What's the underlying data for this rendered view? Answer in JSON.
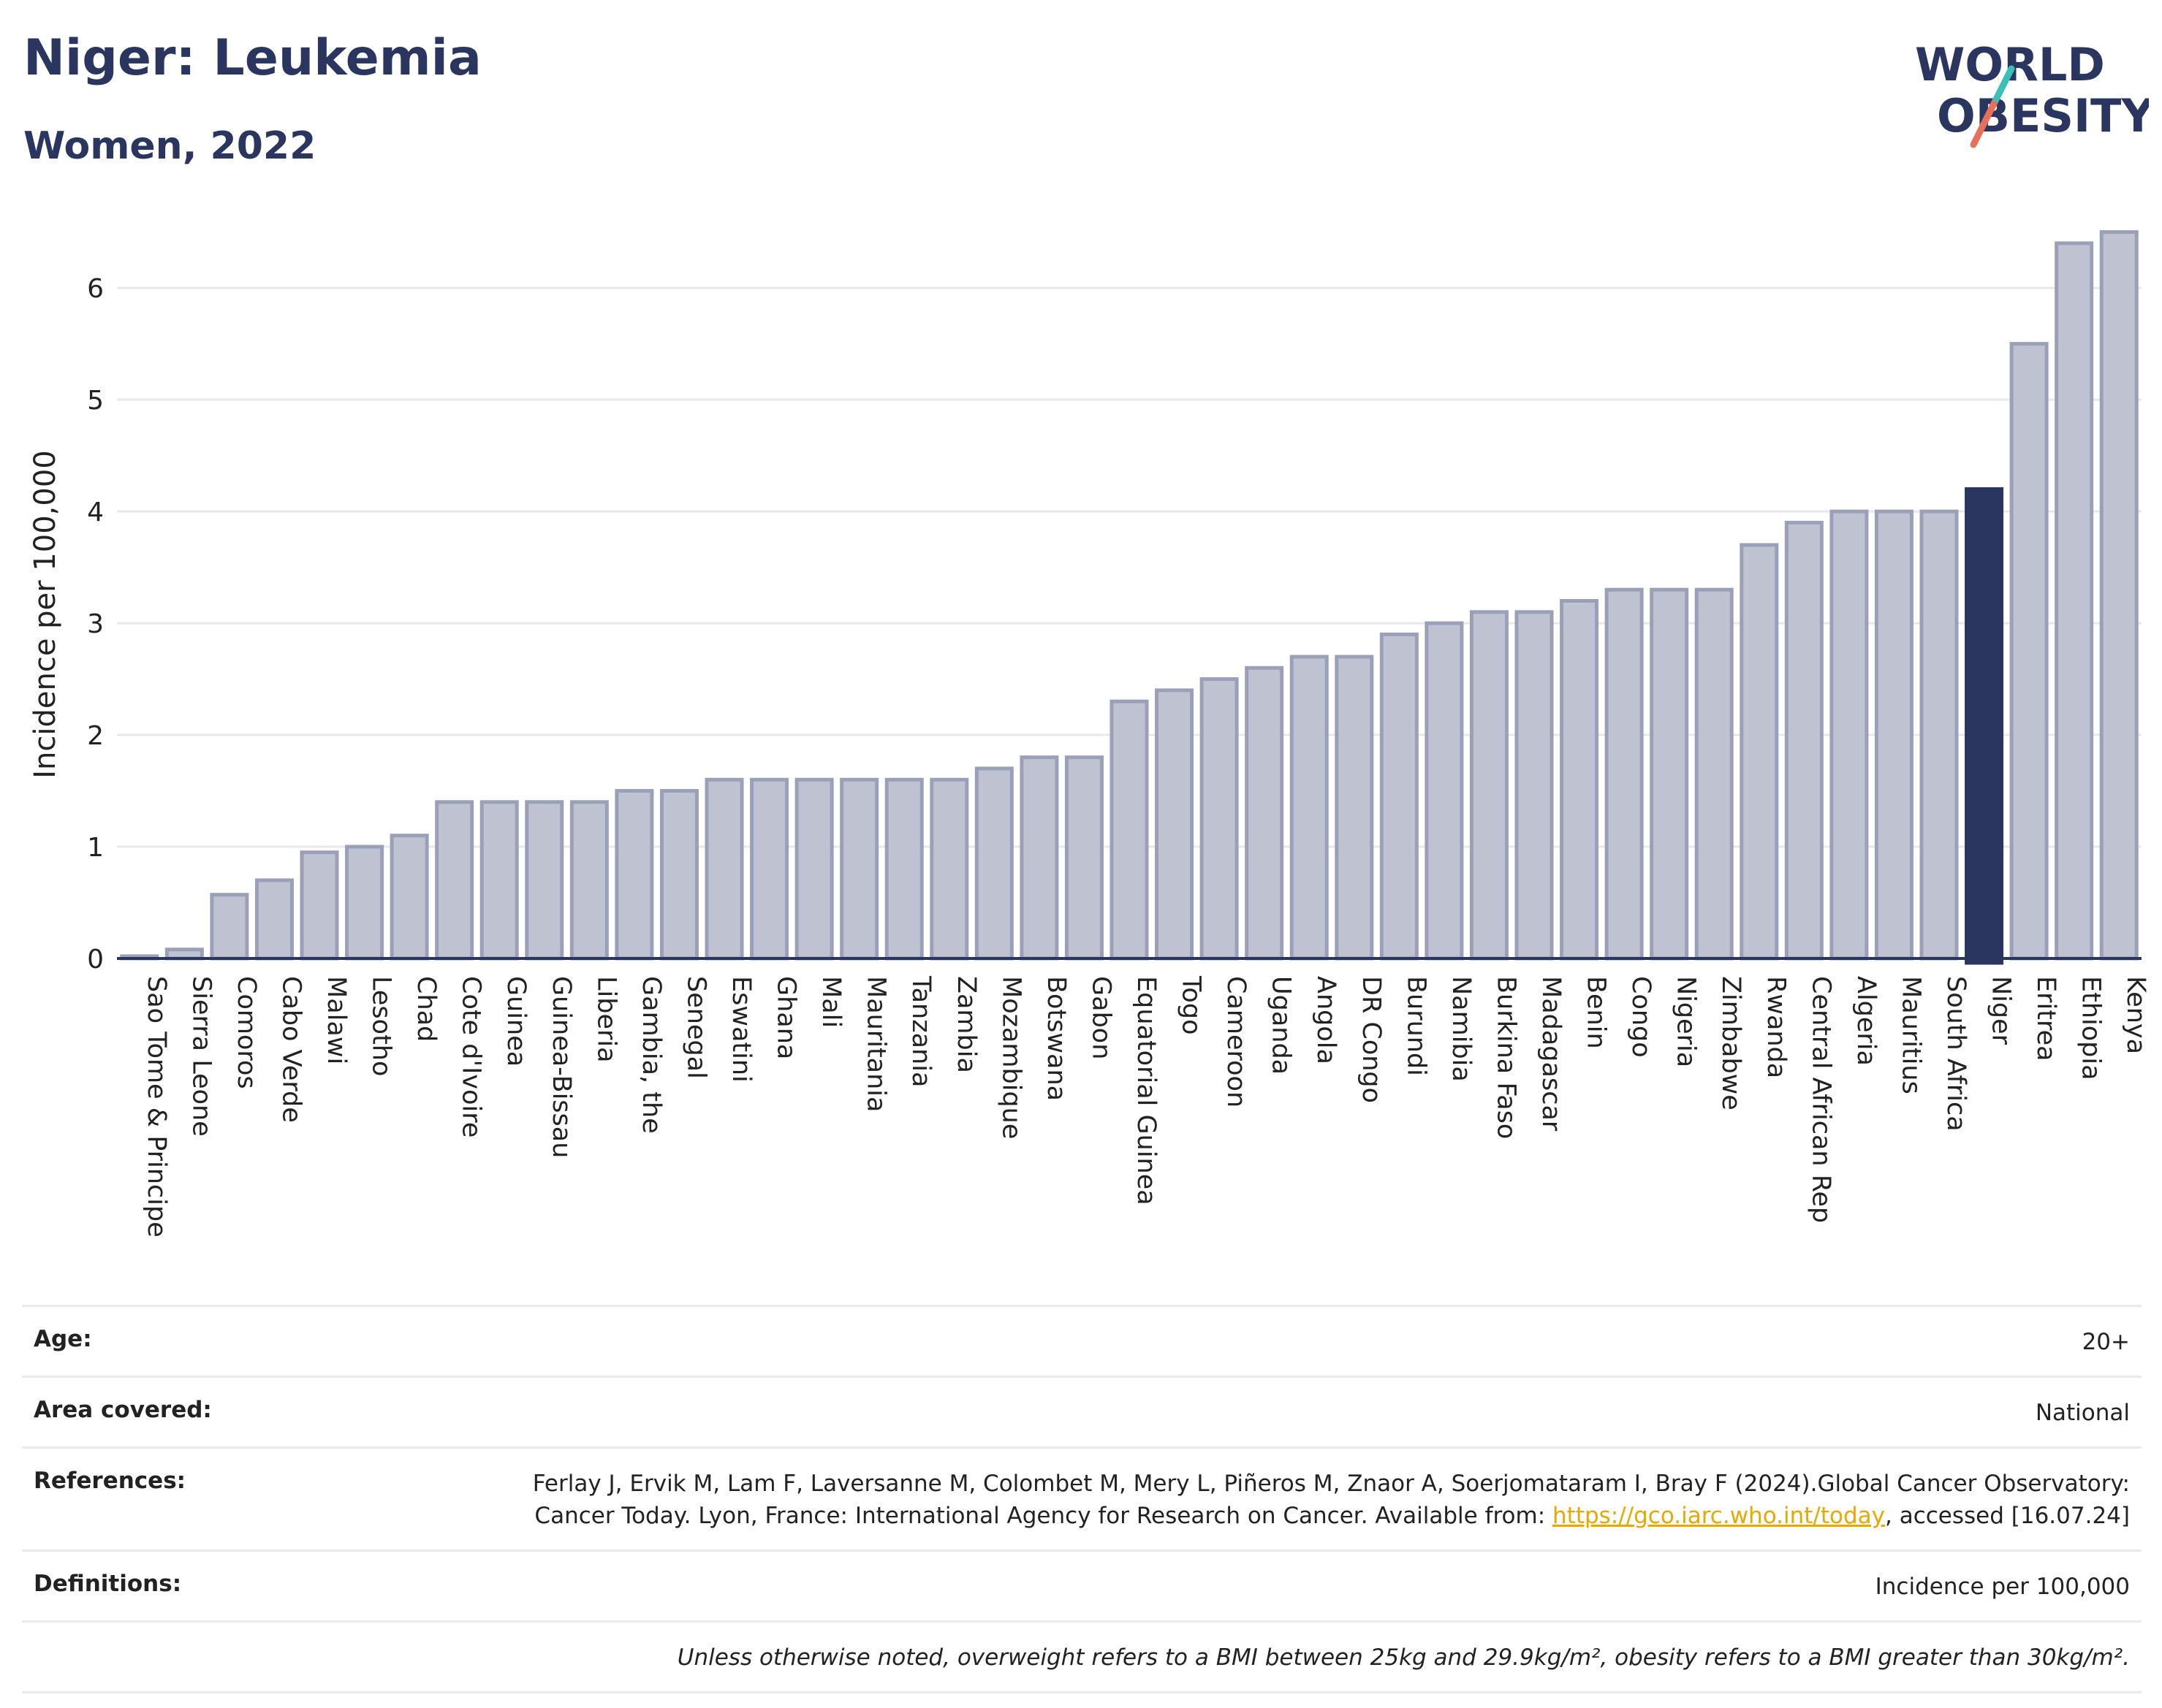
{
  "title": "Niger: Leukemia",
  "subtitle": "Women, 2022",
  "logo": {
    "line1": "WORLD",
    "line2": "OBESITY",
    "colors": {
      "text": "#2a3560",
      "slash_teal": "#3bbfb6",
      "slash_coral": "#e8705a"
    }
  },
  "colors": {
    "bar": "#bfc3d1",
    "bar_stroke": "#9aa0b8",
    "highlight": "#2a3560",
    "grid": "#e6e8ee",
    "axis_text": "#222222"
  },
  "chart_data": {
    "type": "bar",
    "title": "Niger: Leukemia",
    "subtitle": "Women, 2022",
    "xlabel": "",
    "ylabel": "Incidence per 100,000",
    "ylim": [
      0,
      6.55
    ],
    "yticks": [
      0,
      1,
      2,
      3,
      4,
      5,
      6
    ],
    "grid": true,
    "highlight": "Niger",
    "categories": [
      "Sao Tome & Principe",
      "Sierra Leone",
      "Comoros",
      "Cabo Verde",
      "Malawi",
      "Lesotho",
      "Chad",
      "Cote d'Ivoire",
      "Guinea",
      "Guinea-Bissau",
      "Liberia",
      "Gambia, the",
      "Senegal",
      "Eswatini",
      "Ghana",
      "Mali",
      "Mauritania",
      "Tanzania",
      "Zambia",
      "Mozambique",
      "Botswana",
      "Gabon",
      "Equatorial Guinea",
      "Togo",
      "Cameroon",
      "Uganda",
      "Angola",
      "DR Congo",
      "Burundi",
      "Namibia",
      "Burkina Faso",
      "Madagascar",
      "Benin",
      "Congo",
      "Nigeria",
      "Zimbabwe",
      "Rwanda",
      "Central African Rep",
      "Algeria",
      "Mauritius",
      "South Africa",
      "Niger",
      "Eritrea",
      "Ethiopia",
      "Kenya"
    ],
    "values": [
      0.02,
      0.08,
      0.57,
      0.7,
      0.95,
      1.0,
      1.1,
      1.4,
      1.4,
      1.4,
      1.4,
      1.5,
      1.5,
      1.6,
      1.6,
      1.6,
      1.6,
      1.6,
      1.6,
      1.7,
      1.8,
      1.8,
      2.3,
      2.4,
      2.5,
      2.6,
      2.7,
      2.7,
      2.9,
      3.0,
      3.1,
      3.1,
      3.2,
      3.3,
      3.3,
      3.3,
      3.7,
      3.9,
      4.0,
      4.0,
      4.0,
      4.2,
      5.5,
      6.4,
      6.5
    ]
  },
  "meta": {
    "rows": [
      {
        "label": "Age:",
        "value": "20+"
      },
      {
        "label": "Area covered:",
        "value": "National"
      },
      {
        "label": "Definitions:",
        "value": "Incidence per 100,000"
      }
    ],
    "references_label": "References:",
    "references_text_1": "Ferlay J, Ervik M, Lam F, Laversanne M, Colombet M, Mery L, Piñeros M, Znaor A, Soerjomataram I, Bray F (2024).Global Cancer Observatory: Cancer Today. Lyon, France: International Agency for Research on Cancer. Available from: ",
    "references_link": "https://gco.iarc.who.int/today",
    "references_text_2": ", accessed [16.07.24]",
    "note": "Unless otherwise noted, overweight refers to a BMI between 25kg and 29.9kg/m², obesity refers to a BMI greater than 30kg/m²."
  }
}
